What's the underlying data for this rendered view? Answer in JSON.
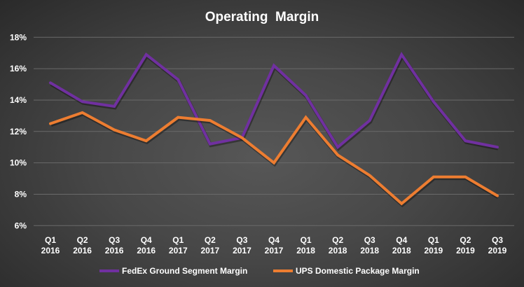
{
  "chart_data": {
    "type": "line",
    "title": "Operating  Margin",
    "categories": [
      [
        "Q1",
        "2016"
      ],
      [
        "Q2",
        "2016"
      ],
      [
        "Q3",
        "2016"
      ],
      [
        "Q4",
        "2016"
      ],
      [
        "Q1",
        "2017"
      ],
      [
        "Q2",
        "2017"
      ],
      [
        "Q3",
        "2017"
      ],
      [
        "Q4",
        "2017"
      ],
      [
        "Q1",
        "2018"
      ],
      [
        "Q2",
        "2018"
      ],
      [
        "Q3",
        "2018"
      ],
      [
        "Q4",
        "2018"
      ],
      [
        "Q1",
        "2019"
      ],
      [
        "Q2",
        "2019"
      ],
      [
        "Q3",
        "2019"
      ]
    ],
    "series": [
      {
        "name": "FedEx Ground Segment Margin",
        "color": "#7030a0",
        "values": [
          15.1,
          13.9,
          13.6,
          16.9,
          15.3,
          11.2,
          11.6,
          16.2,
          14.3,
          11.0,
          12.7,
          16.9,
          13.9,
          11.4,
          11.0
        ]
      },
      {
        "name": "UPS Domestic Package Margin",
        "color": "#ed7d31",
        "values": [
          12.5,
          13.2,
          12.1,
          11.4,
          12.9,
          12.7,
          11.6,
          10.0,
          12.9,
          10.5,
          9.2,
          7.4,
          9.1,
          9.1,
          7.9
        ]
      }
    ],
    "ylim": [
      6,
      18
    ],
    "yticks": [
      "6%",
      "8%",
      "10%",
      "12%",
      "14%",
      "16%",
      "18%"
    ],
    "ytick_values": [
      6,
      8,
      10,
      12,
      14,
      16,
      18
    ],
    "grid": true,
    "legend_position": "bottom",
    "background": "#474747"
  }
}
